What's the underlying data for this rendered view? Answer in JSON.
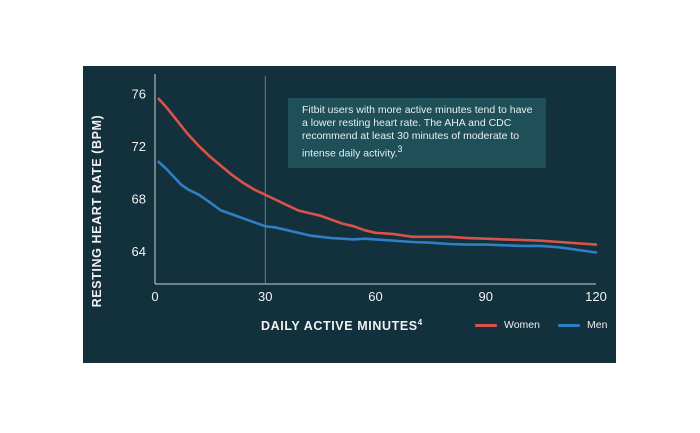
{
  "chart_data": {
    "type": "line",
    "xlabel": "DAILY ACTIVE MINUTES",
    "xlabel_sup": "4",
    "ylabel": "RESTING HEART RATE (BPM)",
    "xlim": [
      0,
      120
    ],
    "ylim": [
      61.5,
      77.5
    ],
    "x_ticks": [
      "0",
      "30",
      "60",
      "90",
      "120"
    ],
    "x_tick_values": [
      0,
      30,
      60,
      90,
      120
    ],
    "y_ticks": [
      "76",
      "72",
      "68",
      "64"
    ],
    "y_tick_values": [
      76,
      72,
      68,
      64
    ],
    "reference_line_x": 30,
    "legend_position": "bottom-right",
    "annotation": "Fitbit users with more active minutes tend to have a lower resting heart rate. The AHA and CDC recommend at least 30 minutes of moderate to intense daily activity.",
    "annotation_sup": "3",
    "series": [
      {
        "name": "Women",
        "color": "#d9534a",
        "x": [
          1,
          3,
          5,
          7,
          9,
          12,
          15,
          18,
          21,
          24,
          27,
          30,
          33,
          36,
          39,
          42,
          45,
          48,
          51,
          54,
          57,
          60,
          65,
          70,
          75,
          80,
          85,
          90,
          95,
          100,
          105,
          110,
          115,
          120
        ],
        "y": [
          75.6,
          75.0,
          74.3,
          73.6,
          72.9,
          72.0,
          71.2,
          70.5,
          69.8,
          69.2,
          68.7,
          68.3,
          67.9,
          67.5,
          67.1,
          66.9,
          66.7,
          66.4,
          66.1,
          65.9,
          65.6,
          65.4,
          65.3,
          65.1,
          65.1,
          65.1,
          65.0,
          64.95,
          64.9,
          64.85,
          64.8,
          64.7,
          64.6,
          64.5
        ]
      },
      {
        "name": "Men",
        "color": "#2f7fc4",
        "x": [
          1,
          3,
          5,
          7,
          9,
          12,
          15,
          18,
          21,
          24,
          27,
          30,
          33,
          36,
          39,
          42,
          45,
          48,
          51,
          54,
          57,
          60,
          65,
          70,
          75,
          80,
          85,
          90,
          95,
          100,
          105,
          110,
          115,
          120
        ],
        "y": [
          70.8,
          70.3,
          69.7,
          69.1,
          68.7,
          68.3,
          67.7,
          67.1,
          66.8,
          66.5,
          66.2,
          65.9,
          65.8,
          65.6,
          65.4,
          65.2,
          65.1,
          65.0,
          64.95,
          64.9,
          64.95,
          64.9,
          64.8,
          64.7,
          64.65,
          64.55,
          64.5,
          64.5,
          64.45,
          64.4,
          64.4,
          64.3,
          64.1,
          63.9
        ]
      }
    ]
  }
}
